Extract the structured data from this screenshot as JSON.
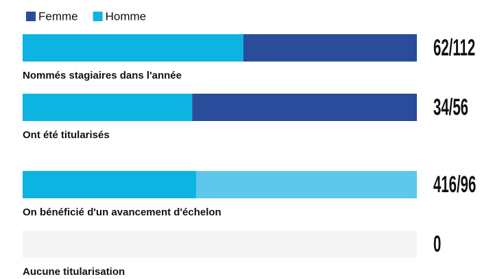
{
  "chart_data": {
    "type": "stacked-bar-horizontal",
    "categories": [
      "Nommés stagiaires dans l'année",
      "Ont été titularisés",
      "On bénéficié d'un avancement d'échelon",
      "Aucune titularisation"
    ],
    "series": [
      {
        "name": "Homme",
        "color": "#0db4e2",
        "values": [
          56,
          43,
          44,
          0
        ]
      },
      {
        "name": "Femme",
        "color": "#2b4c9b",
        "colors": [
          "#2b4c9b",
          "#2b4c9b",
          "#5fc7ea",
          "#2b4c9b"
        ],
        "values": [
          44,
          57,
          56,
          0
        ]
      }
    ],
    "legend_order": [
      1,
      0
    ],
    "annotations": [
      "62/112",
      "34/56",
      "416/96",
      "0"
    ],
    "xlim": [
      0,
      100
    ]
  }
}
